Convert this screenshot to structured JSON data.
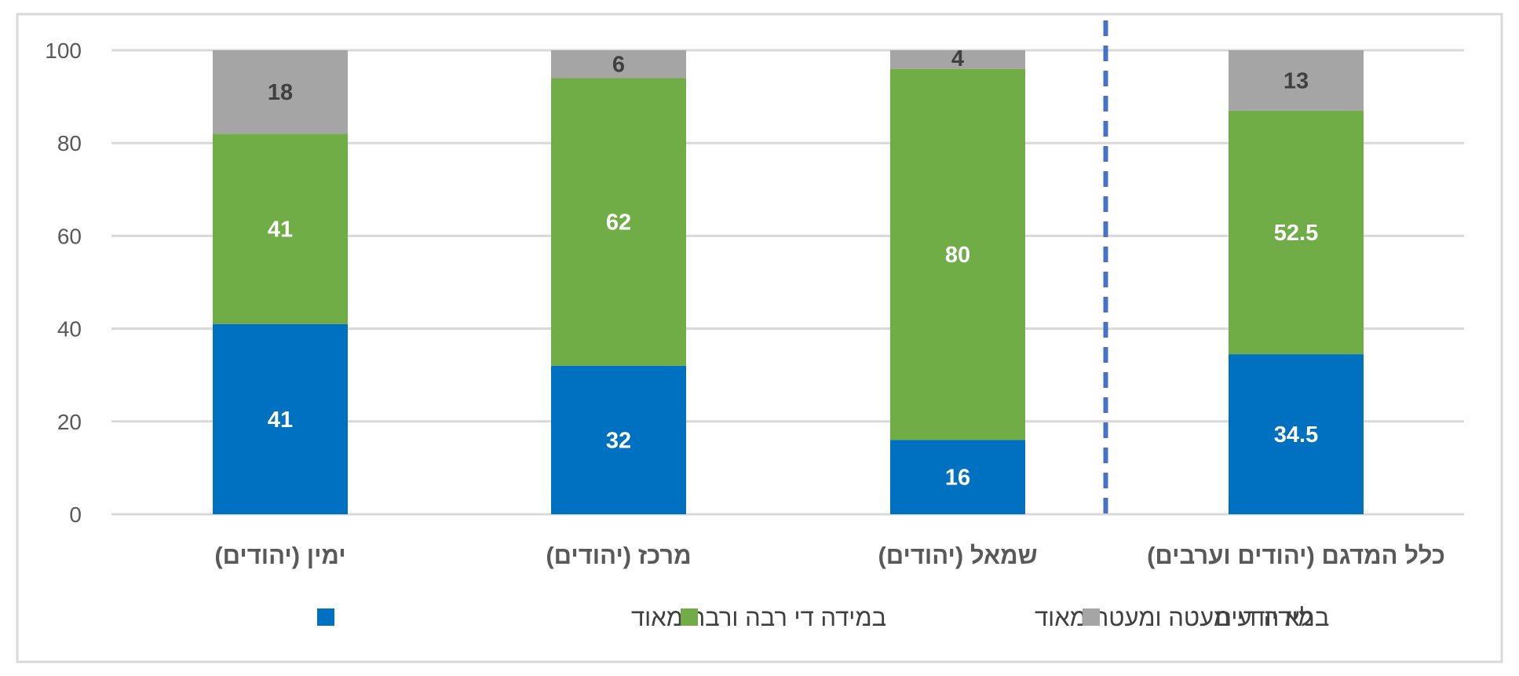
{
  "chart_data": {
    "type": "bar",
    "stacked": true,
    "direction": "rtl",
    "categories": [
      "כלל המדגם (יהודים וערבים)",
      "שמאל (יהודים)",
      "מרכז (יהודים)",
      "ימין (יהודים)"
    ],
    "series": [
      {
        "name": "במידה די רבה ורבה מאוד",
        "color": "#0070C0",
        "label_color": "#ffffff",
        "values": [
          34.5,
          16,
          32,
          41
        ]
      },
      {
        "name": "במידה די מעטה ומעטה מאוד",
        "color": "#70AD47",
        "label_color": "#ffffff",
        "values": [
          52.5,
          80,
          62,
          41
        ]
      },
      {
        "name": "לא יודעים",
        "color": "#A5A5A5",
        "label_color": "#404040",
        "values": [
          13,
          4,
          6,
          18
        ]
      }
    ],
    "ylim": [
      0,
      100
    ],
    "yticks": [
      0,
      20,
      40,
      60,
      80,
      100
    ],
    "grid": true,
    "legend_position": "bottom",
    "divider": {
      "after_category": 0,
      "style": "dashed",
      "color": "#4472C4"
    }
  }
}
